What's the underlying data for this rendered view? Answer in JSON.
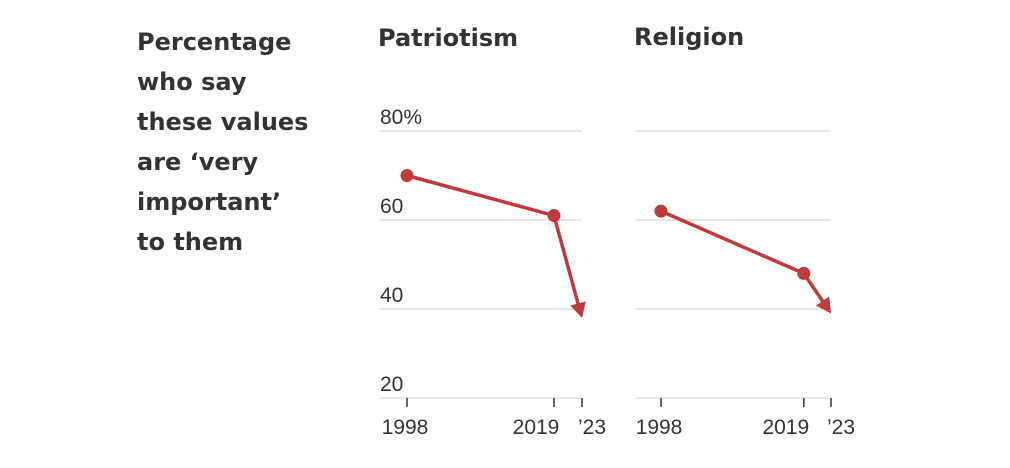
{
  "headline_lines": [
    "Percentage",
    "who say",
    "these values",
    "are ‘very",
    "important’",
    "to them"
  ],
  "chart_data": [
    {
      "type": "line",
      "title": "Patriotism",
      "x": [
        1998,
        2019,
        2023
      ],
      "x_tick_labels": [
        "1998",
        "2019",
        "’23"
      ],
      "y_ticks": [
        80,
        60,
        40,
        20
      ],
      "y_tick_labels": [
        "80%",
        "60",
        "40",
        "20"
      ],
      "ylim": [
        20,
        80
      ],
      "series": [
        {
          "values": [
            70,
            61,
            38
          ]
        }
      ],
      "marker_points": [
        1998,
        2019
      ],
      "last_segment": "arrow",
      "color": "#c0393b",
      "grid": true
    },
    {
      "type": "line",
      "title": "Religion",
      "x": [
        1998,
        2019,
        2023
      ],
      "x_tick_labels": [
        "1998",
        "2019",
        "’23"
      ],
      "y_ticks": [
        80,
        60,
        40,
        20
      ],
      "ylim": [
        20,
        80
      ],
      "series": [
        {
          "values": [
            62,
            48,
            39
          ]
        }
      ],
      "marker_points": [
        1998,
        2019
      ],
      "last_segment": "arrow",
      "color": "#c0393b",
      "grid": true
    }
  ]
}
